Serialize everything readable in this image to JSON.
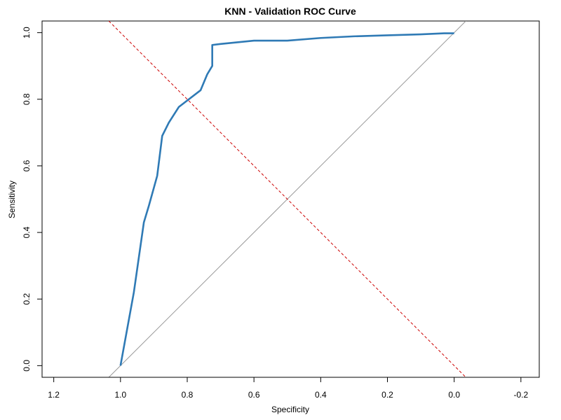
{
  "chart_data": {
    "type": "line",
    "title": "KNN - Validation ROC Curve",
    "xlabel": "Specificity",
    "ylabel": "Sensitivity",
    "xlim": [
      1.235,
      -0.255
    ],
    "ylim": [
      -0.035,
      1.035
    ],
    "x_reversed": true,
    "grid": false,
    "x_ticks": [
      1.2,
      1.0,
      0.8,
      0.6,
      0.4,
      0.2,
      0.0,
      -0.2
    ],
    "x_tick_labels": [
      "1.2",
      "1.0",
      "0.8",
      "0.6",
      "0.4",
      "0.2",
      "0.0",
      "-0.2"
    ],
    "y_ticks": [
      0.0,
      0.2,
      0.4,
      0.6,
      0.8,
      1.0
    ],
    "y_tick_labels": [
      "0.0",
      "0.2",
      "0.4",
      "0.6",
      "0.8",
      "1.0"
    ],
    "series": [
      {
        "color": "#2f7ab5",
        "line_style": "solid",
        "x": [
          1.0,
          0.96,
          0.93,
          0.915,
          0.89,
          0.875,
          0.855,
          0.825,
          0.76,
          0.74,
          0.725,
          0.725,
          0.7,
          0.6,
          0.5,
          0.4,
          0.3,
          0.2,
          0.1,
          0.03,
          0.0
        ],
        "y": [
          0.0,
          0.22,
          0.43,
          0.48,
          0.57,
          0.69,
          0.73,
          0.777,
          0.827,
          0.875,
          0.9,
          0.963,
          0.966,
          0.976,
          0.976,
          0.984,
          0.989,
          0.992,
          0.995,
          0.998,
          0.998
        ]
      }
    ],
    "reference_lines": [
      {
        "kind": "diagonal",
        "color": "#999999",
        "line_style": "solid",
        "x": [
          1.035,
          -0.035
        ],
        "y": [
          -0.035,
          1.035
        ]
      },
      {
        "kind": "threshold",
        "color": "#cc0000",
        "line_style": "dashed",
        "x": [
          1.035,
          -0.035
        ],
        "y": [
          1.035,
          -0.035
        ]
      }
    ]
  }
}
